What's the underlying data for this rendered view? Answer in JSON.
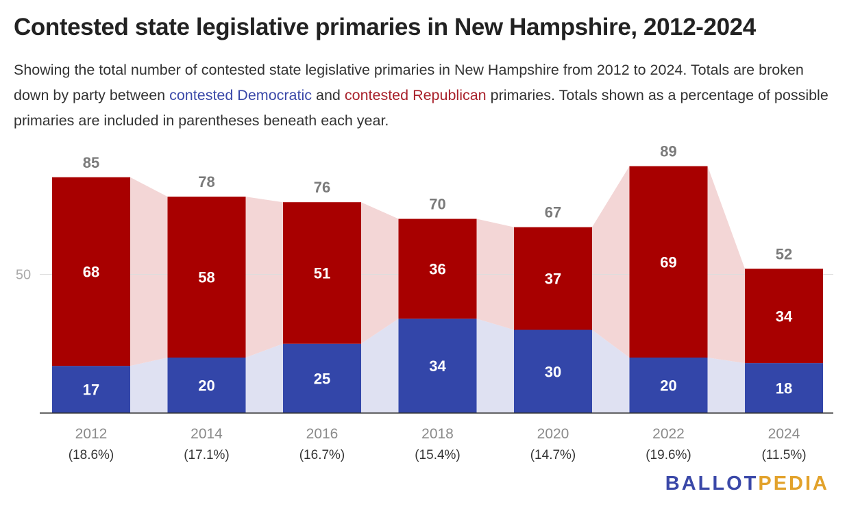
{
  "header": {
    "title": "Contested state legislative primaries in New Hampshire, 2012-2024",
    "subtitle_1": "Showing the total number of contested state legislative primaries in New Hampshire from 2012 to 2024. Totals are broken down by party between ",
    "subtitle_dem": "contested Democratic",
    "subtitle_2": " and ",
    "subtitle_rep": "contested Republican",
    "subtitle_3": " primaries. Totals shown as a percentage of possible primaries are included in parentheses beneath each year."
  },
  "logo": {
    "part1": "BALLOT",
    "part2": "PEDIA"
  },
  "colors": {
    "democratic": "#3346a9",
    "republican": "#a80000",
    "democratic_band": "#dfe1f2",
    "republican_band": "#f3d6d6",
    "total_label": "#7a7a7a",
    "axis_label": "#8a8a8a",
    "gridline": "#dddddd"
  },
  "chart_data": {
    "type": "bar",
    "stacked": true,
    "categories": [
      "2012",
      "2014",
      "2016",
      "2018",
      "2020",
      "2022",
      "2024"
    ],
    "category_sublabels": [
      "(18.6%)",
      "(17.1%)",
      "(16.7%)",
      "(15.4%)",
      "(14.7%)",
      "(19.6%)",
      "(11.5%)"
    ],
    "series": [
      {
        "name": "contested Democratic",
        "values": [
          17,
          20,
          25,
          34,
          30,
          20,
          18
        ]
      },
      {
        "name": "contested Republican",
        "values": [
          68,
          58,
          51,
          36,
          37,
          69,
          34
        ]
      }
    ],
    "totals": [
      85,
      78,
      76,
      70,
      67,
      89,
      52
    ],
    "yticks": [
      50
    ],
    "ylim": [
      0,
      100
    ],
    "grid": true,
    "title": "Contested state legislative primaries in New Hampshire, 2012-2024",
    "xlabel": "",
    "ylabel": ""
  }
}
